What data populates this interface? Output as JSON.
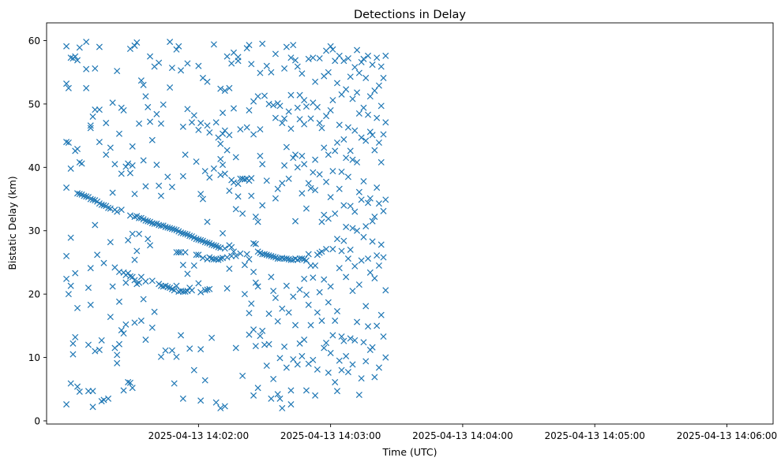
{
  "chart_data": {
    "type": "scatter",
    "title": "Detections in Delay",
    "xlabel": "Time (UTC)",
    "ylabel": "Bistatic Delay (km)",
    "x_tick_labels": [
      "2025-04-13 14:02:00",
      "2025-04-13 14:03:00",
      "2025-04-13 14:04:00",
      "2025-04-13 14:05:00",
      "2025-04-13 14:06:00"
    ],
    "x_ticks": [
      "2025-04-13T14:02:00Z",
      "2025-04-13T14:03:00Z",
      "2025-04-13T14:04:00Z",
      "2025-04-13T14:05:00Z",
      "2025-04-13T14:06:00Z"
    ],
    "y_ticks": [
      0,
      10,
      20,
      30,
      40,
      50,
      60
    ],
    "xlim": [
      "2025-04-13T14:00:51Z",
      "2025-04-13T14:06:21Z"
    ],
    "ylim": [
      -0.5,
      62.8
    ],
    "grid": false,
    "marker": "x",
    "color": "#1f77b4",
    "series": [
      {
        "time_start": "2025-04-13T14:01:00Z",
        "time_step_s": 1,
        "y": [
          [
            59.1,
            53.2,
            44.0,
            26.0,
            22.4,
            2.6,
            36.8
          ],
          [
            52.5,
            43.9,
            20.0
          ],
          [
            57.3,
            39.8,
            28.9,
            21.3,
            5.9
          ],
          [
            57.2,
            12.2,
            10.5
          ],
          [
            57.5,
            42.6,
            23.3,
            13.2
          ],
          [
            56.9,
            42.9,
            35.9,
            17.8,
            5.4
          ],
          [
            58.9,
            40.8,
            35.8,
            4.6
          ],
          [
            40.6,
            35.7
          ],
          [
            35.5
          ],
          [
            59.8,
            52.5,
            55.5,
            35.4
          ],
          [
            35.3,
            21.0,
            12.0,
            4.7
          ],
          [
            46.6,
            46.2,
            35.0,
            24.1,
            18.3
          ],
          [
            48.0,
            34.9,
            4.7,
            2.2
          ],
          [
            55.6,
            49.1,
            34.8,
            30.9,
            11.0
          ],
          [
            34.6,
            26.2
          ],
          [
            59.0,
            49.1,
            44.0,
            34.3,
            11.2
          ],
          [
            34.1,
            12.7,
            3.1
          ],
          [
            34.0,
            24.9,
            3.3
          ],
          [
            47.0,
            42.0,
            33.9
          ],
          [
            33.6,
            3.5
          ],
          [
            43.1,
            33.5,
            28.2,
            16.4
          ],
          [
            50.2,
            36.0,
            21.2
          ],
          [
            40.5,
            33.3,
            24.2,
            11.5
          ],
          [
            55.2,
            33.0,
            10.4,
            9.1
          ],
          [
            45.3,
            23.5,
            12.1,
            18.8
          ],
          [
            49.4,
            39.0,
            33.3,
            14.3
          ],
          [
            49.0,
            23.4,
            13.8,
            4.8
          ],
          [
            40.1,
            23.0,
            21.8,
            15.2
          ],
          [
            40.6,
            28.5,
            23.3,
            6.1
          ],
          [
            58.7,
            39.1,
            32.4,
            22.8,
            6.0
          ],
          [
            43.3,
            40.3,
            29.5,
            22.7,
            5.2
          ],
          [
            59.2,
            35.8,
            32.2,
            25.4,
            22.2,
            15.5
          ],
          [
            59.7,
            32.3,
            26.8,
            21.6
          ],
          [
            46.9,
            32.0,
            29.5,
            21.8
          ],
          [
            53.7,
            32.0,
            22.7,
            15.8
          ],
          [
            53.0,
            41.1,
            31.8,
            19.2
          ],
          [
            51.2,
            37.0,
            31.6,
            22.0,
            12.8
          ],
          [
            49.5,
            31.5,
            28.7
          ],
          [
            57.5,
            47.2,
            31.4,
            27.7
          ],
          [
            44.3,
            31.2,
            22.1,
            14.7
          ],
          [
            55.9,
            31.1,
            17.2
          ],
          [
            48.4,
            40.4,
            31.1
          ],
          [
            56.5,
            37.1,
            30.9,
            21.6
          ],
          [
            46.9,
            35.5,
            30.8,
            21.3,
            10.1
          ],
          [
            49.9,
            30.8,
            21.2
          ],
          [
            30.6,
            21.3,
            11.1
          ],
          [
            38.5,
            30.5,
            21.1
          ],
          [
            59.8,
            52.6,
            30.4,
            21.0
          ],
          [
            55.7,
            36.9,
            30.3,
            20.8,
            11.1
          ],
          [
            30.2,
            20.6,
            5.9
          ],
          [
            58.6,
            30.1,
            26.6,
            21.3,
            10.1
          ],
          [
            59.1,
            29.9,
            26.6,
            20.4
          ],
          [
            55.3,
            29.7,
            26.6,
            20.5,
            13.5
          ],
          [
            46.4,
            38.6,
            29.6,
            24.6,
            20.4,
            3.5
          ],
          [
            42.0,
            29.5,
            26.6,
            20.4
          ],
          [
            56.4,
            49.2,
            29.4,
            23.2,
            20.5
          ],
          [
            29.2,
            21.0,
            11.4
          ],
          [
            47.1,
            29.1,
            20.6
          ],
          [
            48.2,
            28.9,
            24.5,
            8.0
          ],
          [
            40.9,
            28.7,
            26.2
          ],
          [
            56.0,
            45.9,
            28.6,
            26.2,
            21.7
          ],
          [
            47.0,
            35.8,
            28.5,
            20.3,
            11.3,
            3.2
          ],
          [
            54.1,
            35.0,
            28.4,
            25.7
          ],
          [
            39.4,
            28.2,
            20.6,
            6.4
          ],
          [
            53.5,
            46.6,
            31.4,
            28.1,
            25.5,
            20.7
          ],
          [
            45.5,
            38.4,
            28.0,
            25.8,
            20.8
          ],
          [
            27.8,
            25.6,
            13.1
          ],
          [
            59.4,
            39.8,
            27.7,
            25.5
          ],
          [
            47.1,
            27.6,
            25.5,
            2.9
          ],
          [
            44.7,
            27.4,
            25.4
          ],
          [
            52.4,
            43.7,
            41.3,
            38.8,
            27.3,
            25.6,
            2.0
          ],
          [
            48.6,
            45.3,
            40.4,
            29.6,
            25.7
          ],
          [
            52.1,
            45.8,
            39.0,
            27.2,
            2.3
          ],
          [
            57.5,
            42.7,
            25.8,
            20.9
          ],
          [
            52.5,
            45.1,
            36.3,
            27.7,
            24.0
          ],
          [
            56.4,
            38.0,
            27.4,
            26.0
          ],
          [
            58.1,
            49.3,
            37.6,
            26.7
          ],
          [
            41.6,
            33.4,
            26.0,
            11.5
          ],
          [
            57.4,
            56.8,
            37.4,
            35.4
          ],
          [
            46.0,
            38.2,
            26.4
          ],
          [
            38.2,
            32.7,
            7.1
          ],
          [
            38.1,
            24.6,
            20.0
          ],
          [
            58.8,
            46.3,
            38.2,
            26.3
          ],
          [
            59.3,
            49.0,
            37.9,
            25.5,
            17.0,
            13.6
          ],
          [
            56.3,
            38.3,
            35.5,
            18.5
          ],
          [
            50.4,
            45.2,
            28.0,
            23.5,
            14.4,
            4.0
          ],
          [
            32.2,
            27.9,
            21.8,
            11.8
          ],
          [
            51.2,
            31.4,
            26.7,
            21.2,
            5.2
          ],
          [
            54.9,
            46.0,
            41.8,
            26.5,
            13.4
          ],
          [
            59.5,
            40.5,
            34.0,
            26.3,
            14.2
          ],
          [
            51.3,
            26.3,
            12.0
          ],
          [
            56.0,
            37.9,
            26.2,
            8.7
          ],
          [
            50.0,
            26.1,
            16.9,
            12.1
          ],
          [
            55.0,
            26.0,
            22.7,
            3.5
          ],
          [
            49.8,
            25.9,
            20.5,
            6.6
          ],
          [
            57.9,
            47.8,
            35.1,
            25.8,
            19.4
          ],
          [
            50.1,
            36.6,
            25.6,
            15.7,
            4.2
          ],
          [
            49.7,
            25.6,
            9.9,
            3.5
          ],
          [
            47.0,
            37.5,
            25.7,
            2.0,
            17.7
          ],
          [
            55.6,
            47.7,
            40.3,
            25.6,
            11.7
          ],
          [
            59.0,
            43.2,
            25.6,
            21.3,
            8.4
          ],
          [
            48.8,
            38.2,
            25.5,
            17.1
          ],
          [
            57.3,
            51.4,
            46.1,
            25.4,
            4.8,
            2.6
          ],
          [
            59.3,
            41.5,
            25.4,
            19.6,
            9.7
          ],
          [
            56.9,
            42.0,
            31.5,
            25.6,
            15.1
          ],
          [
            55.9,
            49.4,
            40.0,
            25.4,
            8.9
          ],
          [
            51.4,
            47.6,
            25.6,
            20.7,
            12.2
          ],
          [
            54.8,
            41.8,
            35.9,
            25.6,
            10.2
          ],
          [
            50.6,
            46.8,
            40.5,
            25.5,
            22.4,
            12.8
          ],
          [
            49.6,
            33.5,
            25.3,
            19.9,
            4.8
          ],
          [
            57.1,
            37.5,
            26.3,
            18.3,
            9.0
          ],
          [
            47.7,
            36.7,
            24.5,
            15.1
          ],
          [
            57.3,
            50.2,
            39.2,
            22.6,
            9.6
          ],
          [
            53.5,
            41.2,
            36.4,
            24.5,
            4.0
          ],
          [
            49.5,
            26.2,
            17.1,
            8.1
          ],
          [
            57.2,
            47.0,
            38.9,
            26.5,
            20.3
          ],
          [
            46.2,
            31.4,
            26.7,
            15.8
          ],
          [
            54.4,
            43.1,
            32.5,
            22.3,
            11.5
          ],
          [
            58.4,
            48.1,
            37.7,
            27.1,
            12.3
          ],
          [
            55.0,
            42.0,
            31.9,
            18.7,
            7.6
          ],
          [
            59.1,
            49.0,
            35.3,
            21.2,
            10.7
          ],
          [
            58.6,
            50.6,
            39.4,
            27.1,
            13.5
          ],
          [
            56.8,
            42.6,
            32.7,
            15.8,
            6.1
          ],
          [
            53.3,
            43.9,
            28.7,
            17.3,
            4.7
          ],
          [
            57.6,
            46.7,
            36.6,
            24.1,
            9.5
          ],
          [
            51.5,
            39.3,
            26.8,
            13.3,
            8.0
          ],
          [
            56.8,
            44.4,
            34.0,
            28.4,
            12.6
          ],
          [
            52.3,
            41.5,
            30.6,
            22.7,
            10.2
          ],
          [
            57.2,
            46.3,
            38.5,
            25.6,
            7.7
          ],
          [
            54.3,
            42.6,
            33.9,
            27.0,
            13.0
          ],
          [
            50.8,
            41.2,
            30.4,
            20.5,
            8.9
          ],
          [
            55.8,
            45.8,
            33.0,
            24.4,
            12.7
          ],
          [
            58.5,
            51.8,
            40.8,
            30.0,
            15.6
          ],
          [
            54.9,
            48.5,
            36.1,
            21.5,
            4.1
          ],
          [
            56.6,
            44.7,
            34.9,
            25.3,
            6.7
          ],
          [
            57.1,
            49.4,
            37.8,
            29.0,
            12.4
          ],
          [
            54.1,
            44.2,
            30.7,
            18.1,
            9.4
          ],
          [
            57.6,
            48.3,
            34.4,
            25.6,
            14.9
          ],
          [
            51.2,
            45.6,
            35.1,
            23.4,
            11.2
          ],
          [
            56.2,
            45.1,
            31.5,
            28.3,
            11.6
          ],
          [
            52.1,
            42.7,
            32.2,
            22.5,
            6.9
          ],
          [
            57.3,
            47.8,
            36.8,
            26.1,
            15.0
          ],
          [
            52.9,
            43.9,
            34.3,
            24.5,
            8.4
          ],
          [
            55.9,
            49.7,
            40.8,
            27.8,
            16.7
          ],
          [
            54.1,
            45.2,
            33.1,
            25.8,
            13.3
          ],
          [
            57.6,
            47.1,
            34.9,
            20.6,
            10.0
          ]
        ]
      }
    ]
  }
}
